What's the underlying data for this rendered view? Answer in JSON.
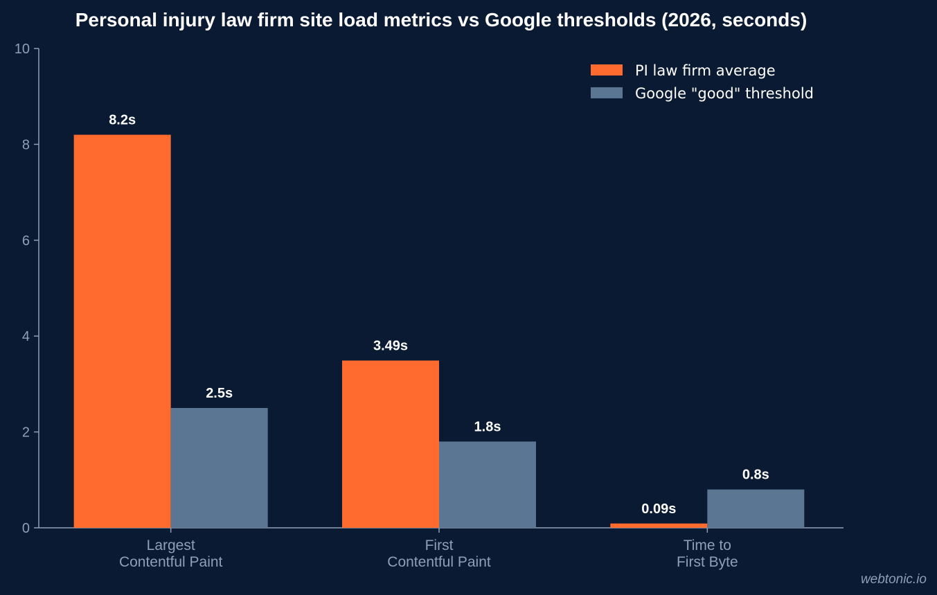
{
  "chart_data": {
    "type": "bar",
    "title": "Personal injury law firm site load metrics vs Google thresholds (2026, seconds)",
    "categories": [
      [
        "Largest",
        "Contentful Paint"
      ],
      [
        "First",
        "Contentful Paint"
      ],
      [
        "Time to",
        "First Byte"
      ]
    ],
    "series": [
      {
        "name": "PI law firm average",
        "color": "#ff6b2e",
        "values": [
          8.2,
          3.49,
          0.09
        ],
        "labels": [
          "8.2s",
          "3.49s",
          "0.09s"
        ]
      },
      {
        "name": "Google \"good\" threshold",
        "color": "#5a7693",
        "values": [
          2.5,
          1.8,
          0.8
        ],
        "labels": [
          "2.5s",
          "1.8s",
          "0.8s"
        ]
      }
    ],
    "ylim": [
      0,
      10
    ],
    "yticks": [
      0,
      2,
      4,
      6,
      8,
      10
    ],
    "xlabel": "",
    "ylabel": "",
    "grid": false,
    "legend": "top-right"
  },
  "watermark": "webtonic.io"
}
